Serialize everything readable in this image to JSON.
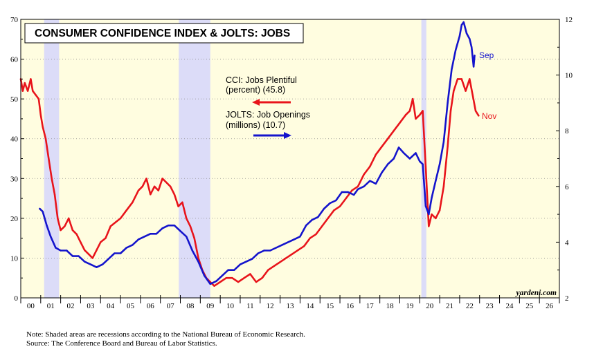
{
  "chart_data": {
    "type": "line",
    "title": "CONSUMER CONFIDENCE INDEX & JOLTS: JOBS",
    "watermark": "yardeni.com",
    "x_axis": {
      "range": [
        2000,
        2027
      ],
      "tick_labels": [
        "00",
        "01",
        "02",
        "03",
        "04",
        "05",
        "06",
        "07",
        "08",
        "09",
        "10",
        "11",
        "12",
        "13",
        "14",
        "15",
        "16",
        "17",
        "18",
        "19",
        "20",
        "21",
        "22",
        "23",
        "24",
        "25",
        "26"
      ]
    },
    "y_left": {
      "range": [
        0,
        70
      ],
      "ticks": [
        0,
        10,
        20,
        30,
        40,
        50,
        60,
        70
      ]
    },
    "y_right": {
      "range": [
        2,
        12
      ],
      "ticks": [
        2,
        4,
        6,
        8,
        10,
        12
      ]
    },
    "recessions": [
      [
        2001.17,
        2001.92
      ],
      [
        2007.92,
        2009.5
      ],
      [
        2020.08,
        2020.33
      ]
    ],
    "series": [
      {
        "name": "CCI: Jobs Plentiful",
        "legend_line1": "CCI: Jobs Plentiful",
        "legend_line2": "(percent) (45.8)",
        "axis": "left",
        "color": "#e8141b",
        "end_label": "Nov",
        "points": [
          [
            2000.0,
            55
          ],
          [
            2000.1,
            52
          ],
          [
            2000.2,
            54
          ],
          [
            2000.35,
            52
          ],
          [
            2000.5,
            55
          ],
          [
            2000.6,
            52
          ],
          [
            2000.75,
            51
          ],
          [
            2000.9,
            50
          ],
          [
            2001.0,
            46
          ],
          [
            2001.1,
            43
          ],
          [
            2001.25,
            40
          ],
          [
            2001.4,
            35
          ],
          [
            2001.55,
            30
          ],
          [
            2001.7,
            26
          ],
          [
            2001.85,
            20
          ],
          [
            2002.0,
            17
          ],
          [
            2002.2,
            18
          ],
          [
            2002.4,
            20
          ],
          [
            2002.6,
            17
          ],
          [
            2002.8,
            16
          ],
          [
            2003.0,
            14
          ],
          [
            2003.2,
            12
          ],
          [
            2003.4,
            11
          ],
          [
            2003.6,
            10
          ],
          [
            2003.8,
            12
          ],
          [
            2004.0,
            14
          ],
          [
            2004.25,
            15
          ],
          [
            2004.5,
            18
          ],
          [
            2004.75,
            19
          ],
          [
            2005.0,
            20
          ],
          [
            2005.3,
            22
          ],
          [
            2005.6,
            24
          ],
          [
            2005.9,
            27
          ],
          [
            2006.1,
            28
          ],
          [
            2006.3,
            30
          ],
          [
            2006.5,
            26
          ],
          [
            2006.7,
            28
          ],
          [
            2006.9,
            27
          ],
          [
            2007.1,
            30
          ],
          [
            2007.3,
            29
          ],
          [
            2007.5,
            28
          ],
          [
            2007.7,
            26
          ],
          [
            2007.9,
            23
          ],
          [
            2008.1,
            24
          ],
          [
            2008.3,
            20
          ],
          [
            2008.5,
            18
          ],
          [
            2008.7,
            15
          ],
          [
            2008.9,
            10
          ],
          [
            2009.1,
            7
          ],
          [
            2009.3,
            5
          ],
          [
            2009.5,
            4
          ],
          [
            2009.7,
            3
          ],
          [
            2010.0,
            4
          ],
          [
            2010.3,
            5
          ],
          [
            2010.6,
            5
          ],
          [
            2010.9,
            4
          ],
          [
            2011.2,
            5
          ],
          [
            2011.5,
            6
          ],
          [
            2011.8,
            4
          ],
          [
            2012.1,
            5
          ],
          [
            2012.4,
            7
          ],
          [
            2012.7,
            8
          ],
          [
            2013.0,
            9
          ],
          [
            2013.3,
            10
          ],
          [
            2013.6,
            11
          ],
          [
            2013.9,
            12
          ],
          [
            2014.2,
            13
          ],
          [
            2014.5,
            15
          ],
          [
            2014.8,
            16
          ],
          [
            2015.1,
            18
          ],
          [
            2015.4,
            20
          ],
          [
            2015.7,
            22
          ],
          [
            2016.0,
            23
          ],
          [
            2016.3,
            25
          ],
          [
            2016.6,
            27
          ],
          [
            2016.9,
            28
          ],
          [
            2017.2,
            31
          ],
          [
            2017.5,
            33
          ],
          [
            2017.8,
            36
          ],
          [
            2018.1,
            38
          ],
          [
            2018.4,
            40
          ],
          [
            2018.7,
            42
          ],
          [
            2019.0,
            44
          ],
          [
            2019.3,
            46
          ],
          [
            2019.5,
            47
          ],
          [
            2019.65,
            50
          ],
          [
            2019.8,
            45
          ],
          [
            2020.0,
            46
          ],
          [
            2020.15,
            47
          ],
          [
            2020.3,
            33
          ],
          [
            2020.45,
            18
          ],
          [
            2020.6,
            21
          ],
          [
            2020.8,
            20
          ],
          [
            2021.0,
            22
          ],
          [
            2021.2,
            28
          ],
          [
            2021.4,
            38
          ],
          [
            2021.55,
            47
          ],
          [
            2021.7,
            52
          ],
          [
            2021.9,
            55
          ],
          [
            2022.1,
            55
          ],
          [
            2022.3,
            52
          ],
          [
            2022.5,
            55
          ],
          [
            2022.65,
            51
          ],
          [
            2022.8,
            47
          ],
          [
            2022.95,
            45.8
          ]
        ]
      },
      {
        "name": "JOLTS: Job Openings",
        "legend_line1": "JOLTS: Job Openings",
        "legend_line2": "(millions) (10.7)",
        "axis": "right",
        "color": "#1414cc",
        "end_label": "Sep",
        "points": [
          [
            2000.95,
            5.2
          ],
          [
            2001.1,
            5.1
          ],
          [
            2001.3,
            4.6
          ],
          [
            2001.5,
            4.2
          ],
          [
            2001.75,
            3.8
          ],
          [
            2002.0,
            3.7
          ],
          [
            2002.3,
            3.7
          ],
          [
            2002.6,
            3.5
          ],
          [
            2002.9,
            3.5
          ],
          [
            2003.2,
            3.3
          ],
          [
            2003.5,
            3.2
          ],
          [
            2003.8,
            3.1
          ],
          [
            2004.1,
            3.2
          ],
          [
            2004.4,
            3.4
          ],
          [
            2004.7,
            3.6
          ],
          [
            2005.0,
            3.6
          ],
          [
            2005.3,
            3.8
          ],
          [
            2005.6,
            3.9
          ],
          [
            2005.9,
            4.1
          ],
          [
            2006.2,
            4.2
          ],
          [
            2006.5,
            4.3
          ],
          [
            2006.8,
            4.3
          ],
          [
            2007.1,
            4.5
          ],
          [
            2007.4,
            4.6
          ],
          [
            2007.7,
            4.6
          ],
          [
            2008.0,
            4.4
          ],
          [
            2008.3,
            4.2
          ],
          [
            2008.6,
            3.7
          ],
          [
            2008.9,
            3.3
          ],
          [
            2009.2,
            2.8
          ],
          [
            2009.5,
            2.5
          ],
          [
            2009.8,
            2.6
          ],
          [
            2010.1,
            2.8
          ],
          [
            2010.4,
            3.0
          ],
          [
            2010.7,
            3.0
          ],
          [
            2011.0,
            3.2
          ],
          [
            2011.3,
            3.3
          ],
          [
            2011.6,
            3.4
          ],
          [
            2011.9,
            3.6
          ],
          [
            2012.2,
            3.7
          ],
          [
            2012.5,
            3.7
          ],
          [
            2012.8,
            3.8
          ],
          [
            2013.1,
            3.9
          ],
          [
            2013.4,
            4.0
          ],
          [
            2013.7,
            4.1
          ],
          [
            2014.0,
            4.2
          ],
          [
            2014.3,
            4.6
          ],
          [
            2014.6,
            4.8
          ],
          [
            2014.9,
            4.9
          ],
          [
            2015.2,
            5.2
          ],
          [
            2015.5,
            5.4
          ],
          [
            2015.8,
            5.5
          ],
          [
            2016.1,
            5.8
          ],
          [
            2016.4,
            5.8
          ],
          [
            2016.7,
            5.7
          ],
          [
            2016.9,
            5.9
          ],
          [
            2017.2,
            6.0
          ],
          [
            2017.5,
            6.2
          ],
          [
            2017.8,
            6.1
          ],
          [
            2018.1,
            6.5
          ],
          [
            2018.4,
            6.8
          ],
          [
            2018.7,
            7.0
          ],
          [
            2018.95,
            7.4
          ],
          [
            2019.2,
            7.2
          ],
          [
            2019.5,
            7.0
          ],
          [
            2019.8,
            7.2
          ],
          [
            2020.0,
            6.9
          ],
          [
            2020.15,
            6.8
          ],
          [
            2020.3,
            5.3
          ],
          [
            2020.45,
            5.0
          ],
          [
            2020.6,
            5.6
          ],
          [
            2020.8,
            6.2
          ],
          [
            2021.0,
            6.8
          ],
          [
            2021.2,
            7.6
          ],
          [
            2021.4,
            9.0
          ],
          [
            2021.6,
            10.2
          ],
          [
            2021.8,
            10.9
          ],
          [
            2022.0,
            11.4
          ],
          [
            2022.1,
            11.8
          ],
          [
            2022.2,
            11.9
          ],
          [
            2022.35,
            11.5
          ],
          [
            2022.5,
            11.3
          ],
          [
            2022.6,
            11.0
          ],
          [
            2022.7,
            10.3
          ],
          [
            2022.75,
            10.7
          ]
        ]
      }
    ],
    "notes": [
      "Note: Shaded areas are recessions according to the National Bureau of Economic Research.",
      "Source: The Conference Board and Bureau of Labor Statistics."
    ]
  }
}
